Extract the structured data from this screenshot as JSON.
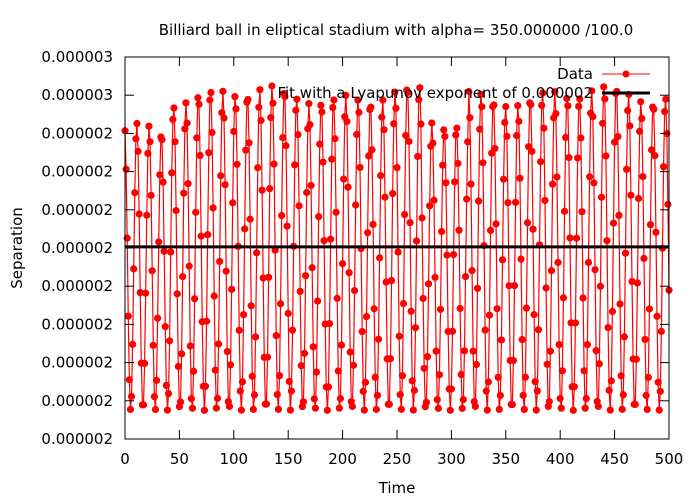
{
  "chart_data": {
    "type": "line",
    "title": "Billiard ball in eliptical stadium with alpha= 350.000000 /100.0",
    "xlabel": "Time",
    "ylabel": "Separation",
    "xlim": [
      0,
      500
    ],
    "x_ticks": [
      0,
      50,
      100,
      150,
      200,
      250,
      300,
      350,
      400,
      450,
      500
    ],
    "y_tick_labels": [
      "0.000002",
      "0.000002",
      "0.000002",
      "0.000002",
      "0.000002",
      "0.000002",
      "0.000002",
      "0.000002",
      "0.000002",
      "0.000003",
      "0.000003"
    ],
    "legend_position": "top-right",
    "grid": false,
    "series": [
      {
        "name": "Data",
        "style": "linespoints",
        "color": "#ff0000",
        "sample_period": 1,
        "oscillation_period": 11.3,
        "start_value_fraction": 0.807
      },
      {
        "name": "Fit with a Lyapunov exponent of 0.000002",
        "style": "line",
        "color": "#000000",
        "value_fraction": 0.503
      }
    ]
  }
}
